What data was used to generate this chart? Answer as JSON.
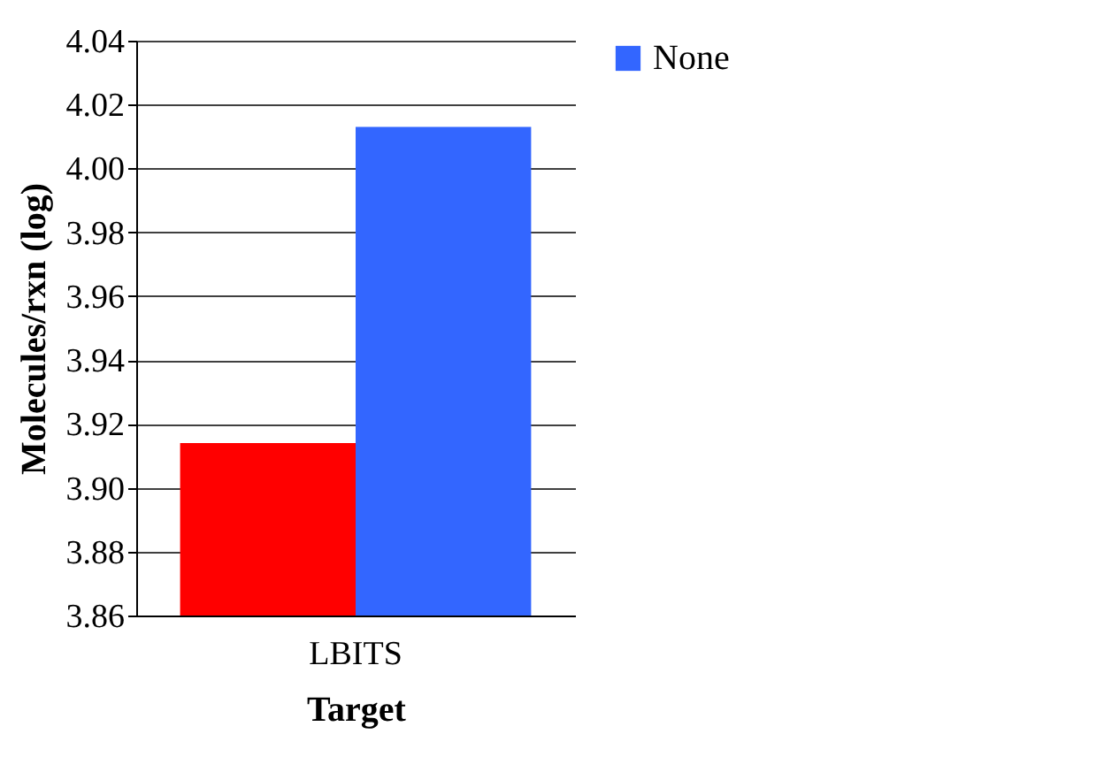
{
  "chart_data": {
    "type": "bar",
    "xlabel": "Target",
    "ylabel": "Molecules/rxn (log)",
    "categories": [
      "LBITS"
    ],
    "series": [
      {
        "color": "#ff0000",
        "values": [
          3.914
        ]
      },
      {
        "name": "None",
        "color": "#3366ff",
        "values": [
          4.013
        ]
      }
    ],
    "ylim": [
      3.86,
      4.04
    ],
    "yticks": [
      3.86,
      3.88,
      {
        "value": 3.9,
        "label": "3.90"
      },
      3.92,
      3.94,
      3.96,
      3.98,
      {
        "value": 4,
        "label": "4.00"
      },
      4.02,
      4.04
    ],
    "grid": "y",
    "legend": "right"
  }
}
